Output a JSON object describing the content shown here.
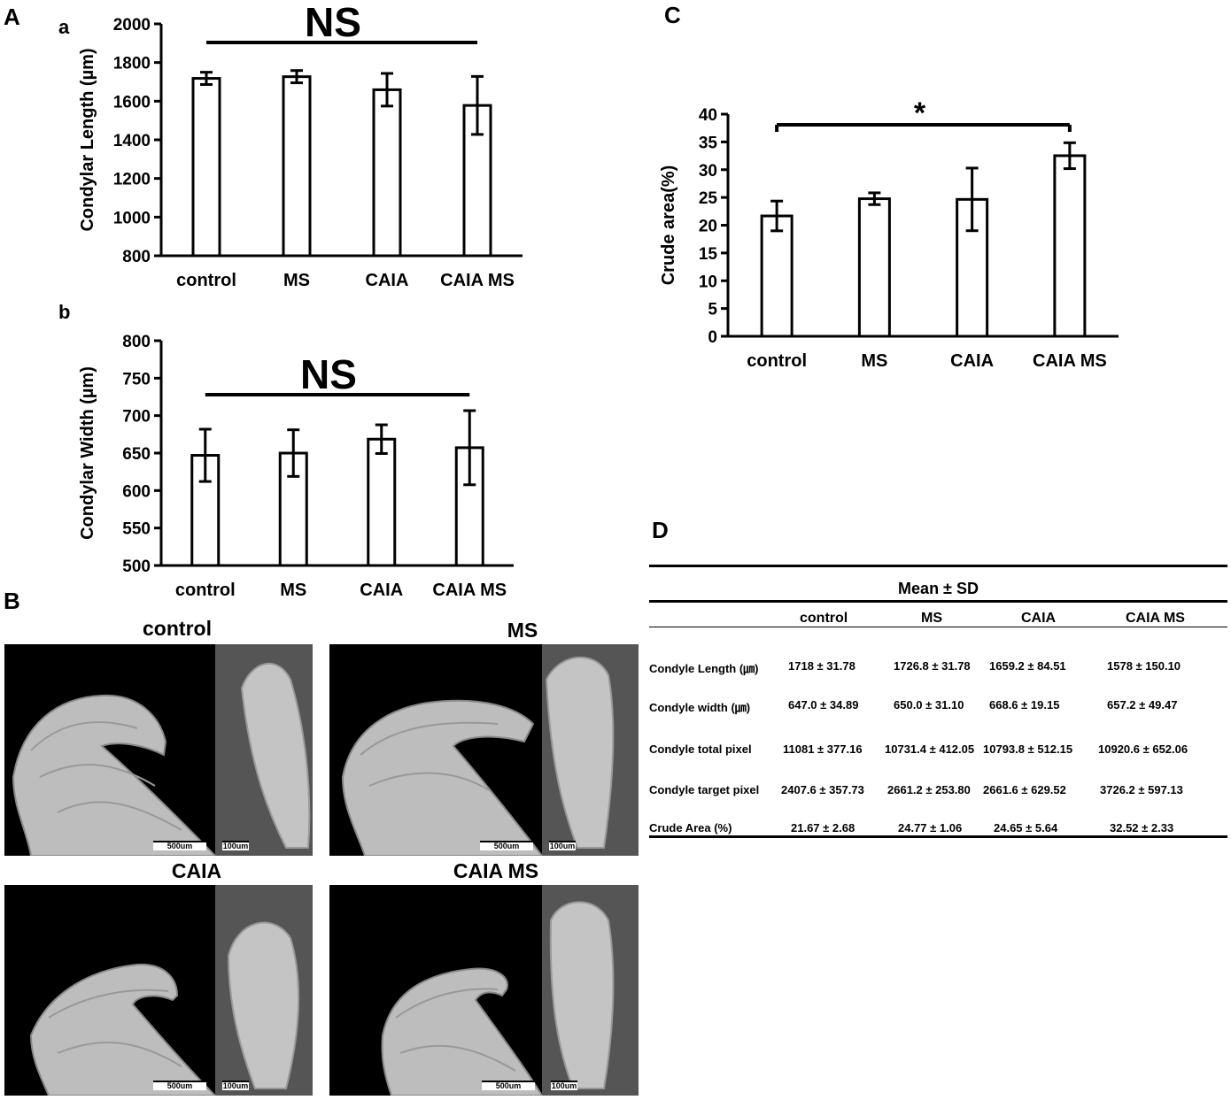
{
  "panels": {
    "A": "A",
    "a": "a",
    "b": "b",
    "B": "B",
    "C": "C",
    "D": "D"
  },
  "chart_data": [
    {
      "id": "Aa",
      "type": "bar",
      "categories": [
        "control",
        "MS",
        "CAIA",
        "CAIA MS"
      ],
      "values": [
        1718,
        1726.8,
        1659.2,
        1578
      ],
      "errors": [
        31.78,
        31.78,
        84.51,
        150.1
      ],
      "ylabel": "Condylar  Length (µm)",
      "ylim": [
        800,
        2000
      ],
      "yticks": [
        "800",
        "1000",
        "1200",
        "1400",
        "1600",
        "1800",
        "2000"
      ],
      "annotation": "NS"
    },
    {
      "id": "Ab",
      "type": "bar",
      "categories": [
        "control",
        "MS",
        "CAIA",
        "CAIA MS"
      ],
      "values": [
        647.0,
        650.0,
        668.6,
        657.2
      ],
      "errors": [
        34.89,
        31.1,
        19.15,
        49.47
      ],
      "ylabel": "Condylar  Width (µm)",
      "ylim": [
        500,
        800
      ],
      "yticks": [
        "500",
        "550",
        "600",
        "650",
        "700",
        "750",
        "800"
      ],
      "annotation": "NS"
    },
    {
      "id": "C",
      "type": "bar",
      "categories": [
        "control",
        "MS",
        "CAIA",
        "CAIA MS"
      ],
      "values": [
        21.67,
        24.77,
        24.65,
        32.52
      ],
      "errors": [
        2.68,
        1.06,
        5.64,
        2.33
      ],
      "ylabel": "Crude area(%)",
      "ylim": [
        0,
        40
      ],
      "yticks": [
        "0",
        "5",
        "10",
        "15",
        "20",
        "25",
        "30",
        "35",
        "40"
      ],
      "annotation": "*"
    }
  ],
  "images": [
    {
      "title": "control",
      "scale_left": "500um",
      "scale_right": "100um"
    },
    {
      "title": "MS",
      "scale_left": "500um",
      "scale_right": "100um"
    },
    {
      "title": "CAIA",
      "scale_left": "500um",
      "scale_right": "100um"
    },
    {
      "title": "CAIA MS",
      "scale_left": "500um",
      "scale_right": "100um"
    }
  ],
  "table": {
    "super_header": "Mean ± SD",
    "columns": [
      "control",
      "MS",
      "CAIA",
      "CAIA MS"
    ],
    "rows": [
      {
        "label": "Condyle Length (㎛)",
        "values": [
          "1718 ± 31.78",
          "1726.8 ± 31.78",
          "1659.2 ± 84.51",
          "1578 ± 150.10"
        ]
      },
      {
        "label": "Condyle width (㎛)",
        "values": [
          "647.0 ± 34.89",
          "650.0 ± 31.10",
          "668.6 ± 19.15",
          "657.2 ± 49.47"
        ]
      },
      {
        "label": "Condyle total pixel",
        "values": [
          "11081 ± 377.16",
          "10731.4 ± 412.05",
          "10793.8 ± 512.15",
          "10920.6 ± 652.06"
        ]
      },
      {
        "label": "Condyle target pixel",
        "values": [
          "2407.6 ± 357.73",
          "2661.2 ± 253.80",
          "2661.6 ± 629.52",
          "3726.2 ± 597.13"
        ]
      },
      {
        "label": "Crude Area (%)",
        "values": [
          "21.67 ± 2.68",
          "24.77 ± 1.06",
          "24.65 ± 5.64",
          "32.52 ± 2.33"
        ]
      }
    ]
  }
}
